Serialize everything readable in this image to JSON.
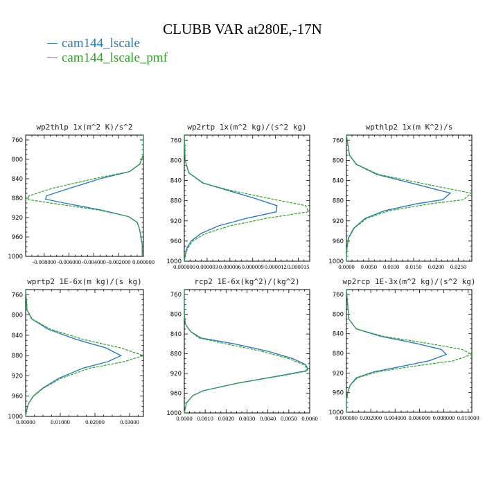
{
  "figure": {
    "title": "CLUBB VAR at280E,-17N",
    "legend": [
      {
        "label": "cam144_lscale",
        "color": "#2c7bb6"
      },
      {
        "label": "cam144_lscale_pmf",
        "color": "#33a02c"
      }
    ]
  },
  "chart_data": [
    {
      "type": "line",
      "title": "wp2thlp  1x(m^2 K)/s^2",
      "xlim": [
        -0.0095,
        0.0
      ],
      "ylim": [
        1000,
        750
      ],
      "xticks": [
        -0.008,
        -0.006,
        -0.004,
        -0.002,
        0.0
      ],
      "xtick_labels": [
        "-0.008000",
        "-0.006000",
        "-0.004000",
        "-0.002000",
        "0.000000"
      ],
      "yticks": [
        760,
        800,
        840,
        880,
        920,
        960,
        1000
      ],
      "y": [
        750,
        770,
        790,
        810,
        825,
        840,
        860,
        875,
        882,
        890,
        905,
        918,
        930,
        945,
        960,
        975,
        990,
        1000
      ],
      "series": [
        {
          "name": "cam144_lscale",
          "values": [
            0.0,
            0.0,
            0.0,
            -0.0003,
            -0.0011,
            -0.0035,
            -0.006,
            -0.0078,
            -0.0079,
            -0.0064,
            -0.0033,
            -0.0012,
            -0.0005,
            -0.0003,
            -0.0002,
            -0.0001,
            -0.0001,
            -0.0001
          ]
        },
        {
          "name": "cam144_lscale_pmf",
          "values": [
            0.0,
            0.0,
            0.0,
            -0.0003,
            -0.0011,
            -0.004,
            -0.0074,
            -0.0092,
            -0.0095,
            -0.0075,
            -0.0035,
            -0.0012,
            -0.0005,
            -0.0003,
            -0.0002,
            -0.0001,
            -0.0001,
            -0.0001
          ]
        }
      ]
    },
    {
      "type": "line",
      "title": "wp2rtp  1x(m^2 kg)/(s^2 kg)",
      "xlim": [
        0.0,
        1.65e-05
      ],
      "ylim": [
        1000,
        750
      ],
      "xticks": [
        0.0,
        3e-06,
        6e-06,
        9e-06,
        1.2e-05,
        1.5e-05
      ],
      "xtick_labels": [
        "0.000000",
        "0.000003",
        "0.000006",
        "0.000009",
        "0.000012",
        "0.000015"
      ],
      "yticks": [
        760,
        800,
        840,
        880,
        920,
        960,
        1000
      ],
      "y": [
        750,
        800,
        825,
        845,
        860,
        875,
        890,
        902,
        915,
        930,
        945,
        960,
        975,
        990,
        1000
      ],
      "series": [
        {
          "name": "cam144_lscale",
          "values": [
            0.0,
            1e-07,
            6e-07,
            2.5e-06,
            5.8e-06,
            9.2e-06,
            1.22e-05,
            1.21e-05,
            8.2e-06,
            4.5e-06,
            2.2e-06,
            9e-07,
            3e-07,
            1e-07,
            0.0
          ]
        },
        {
          "name": "cam144_lscale_pmf",
          "values": [
            0.0,
            1e-07,
            6e-07,
            2.4e-06,
            6.2e-06,
            1.1e-05,
            1.6e-05,
            1.63e-05,
            1.08e-05,
            6e-06,
            2.8e-06,
            1.1e-06,
            4e-07,
            1e-07,
            0.0
          ]
        }
      ]
    },
    {
      "type": "line",
      "title": "wpthlp2  1x(m K^2)/s",
      "xlim": [
        0.0,
        0.028
      ],
      "ylim": [
        1000,
        750
      ],
      "xticks": [
        0.0,
        0.005,
        0.01,
        0.015,
        0.02,
        0.025
      ],
      "xtick_labels": [
        "0.0000",
        "0.0050",
        "0.0100",
        "0.0150",
        "0.0200",
        "0.0250"
      ],
      "yticks": [
        760,
        800,
        840,
        880,
        920,
        960,
        1000
      ],
      "y": [
        750,
        790,
        808,
        828,
        845,
        865,
        878,
        886,
        900,
        915,
        935,
        955,
        975,
        1000
      ],
      "series": [
        {
          "name": "cam144_lscale",
          "values": [
            0.0,
            0.0007,
            0.0022,
            0.0068,
            0.0145,
            0.0232,
            0.0215,
            0.0158,
            0.0085,
            0.0042,
            0.0016,
            0.0004,
            0.0001,
            0.0
          ]
        },
        {
          "name": "cam144_lscale_pmf",
          "values": [
            0.0,
            0.0007,
            0.0023,
            0.0072,
            0.0165,
            0.0278,
            0.0262,
            0.0188,
            0.0095,
            0.0045,
            0.0017,
            0.0005,
            0.0001,
            0.0
          ]
        }
      ]
    },
    {
      "type": "line",
      "title": "wprtp2  1E-6x(m kg)/(s kg)",
      "xlim": [
        0.0,
        0.034
      ],
      "ylim": [
        1000,
        750
      ],
      "xticks": [
        0.0,
        0.01,
        0.02,
        0.03
      ],
      "xtick_labels": [
        "0.00000",
        "0.01000",
        "0.02000",
        "0.03000"
      ],
      "yticks": [
        760,
        800,
        840,
        880,
        920,
        960,
        1000
      ],
      "y": [
        750,
        790,
        808,
        828,
        848,
        865,
        880,
        892,
        905,
        925,
        945,
        960,
        975,
        990,
        1000
      ],
      "series": [
        {
          "name": "cam144_lscale",
          "values": [
            0.0,
            0.0004,
            0.0018,
            0.0065,
            0.0145,
            0.0232,
            0.0275,
            0.0238,
            0.0165,
            0.0095,
            0.0048,
            0.0022,
            0.0008,
            0.0002,
            0.0
          ]
        },
        {
          "name": "cam144_lscale_pmf",
          "values": [
            0.0,
            0.0004,
            0.0019,
            0.0072,
            0.0165,
            0.0275,
            0.034,
            0.0285,
            0.0185,
            0.0102,
            0.005,
            0.0023,
            0.0008,
            0.0002,
            0.0
          ]
        }
      ]
    },
    {
      "type": "line",
      "title": "rcp2  1E-6x(kg^2)/(kg^2)",
      "xlim": [
        0.0,
        0.006
      ],
      "ylim": [
        1000,
        750
      ],
      "xticks": [
        0.0,
        0.001,
        0.002,
        0.003,
        0.004,
        0.005,
        0.006
      ],
      "xtick_labels": [
        "0.0000",
        "0.0010",
        "0.0020",
        "0.0030",
        "0.0040",
        "0.0050",
        "0.0060"
      ],
      "yticks": [
        760,
        800,
        840,
        880,
        920,
        960,
        1000
      ],
      "y": [
        750,
        800,
        820,
        835,
        848,
        860,
        875,
        890,
        902,
        910,
        915,
        925,
        940,
        955,
        965,
        980,
        1000
      ],
      "series": [
        {
          "name": "cam144_lscale",
          "values": [
            0.0,
            0.0,
            5e-05,
            0.0003,
            0.0008,
            0.0024,
            0.004,
            0.0052,
            0.0058,
            0.0059,
            0.0058,
            0.0045,
            0.0025,
            0.0009,
            0.0004,
            0.0001,
            0.0
          ]
        },
        {
          "name": "cam144_lscale_pmf",
          "values": [
            0.0,
            0.0,
            5e-05,
            0.0003,
            0.0007,
            0.002,
            0.0037,
            0.005,
            0.0057,
            0.0059,
            0.0059,
            0.0046,
            0.0025,
            0.0009,
            0.0004,
            0.0001,
            0.0
          ]
        }
      ]
    },
    {
      "type": "line",
      "title": "wp2rcp  1E-3x(m^2 kg)/(s^2 kg)",
      "xlim": [
        0.0,
        0.0103
      ],
      "ylim": [
        1000,
        750
      ],
      "xticks": [
        0.0,
        0.002,
        0.004,
        0.006,
        0.008,
        0.01
      ],
      "xtick_labels": [
        "0.000000",
        "0.002000",
        "0.004000",
        "0.006000",
        "0.008000",
        "0.010000"
      ],
      "yticks": [
        760,
        800,
        840,
        880,
        920,
        960,
        1000
      ],
      "y": [
        750,
        810,
        830,
        845,
        860,
        872,
        882,
        895,
        908,
        918,
        930,
        945,
        960,
        975,
        1000
      ],
      "series": [
        {
          "name": "cam144_lscale",
          "values": [
            0.0,
            0.0002,
            0.0008,
            0.0028,
            0.0058,
            0.0078,
            0.0082,
            0.0068,
            0.0042,
            0.0022,
            0.0008,
            0.0003,
            0.0001,
            0.0,
            0.0
          ]
        },
        {
          "name": "cam144_lscale_pmf",
          "values": [
            0.0,
            0.0002,
            0.0008,
            0.003,
            0.0068,
            0.0095,
            0.0103,
            0.0088,
            0.005,
            0.0025,
            0.0009,
            0.0003,
            0.0001,
            0.0,
            0.0
          ]
        }
      ]
    }
  ]
}
